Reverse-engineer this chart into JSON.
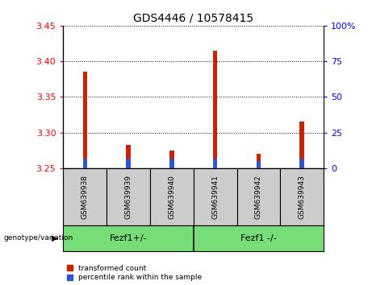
{
  "title": "GDS4446 / 10578415",
  "categories": [
    "GSM639938",
    "GSM639939",
    "GSM639940",
    "GSM639941",
    "GSM639942",
    "GSM639943"
  ],
  "red_values": [
    3.385,
    3.283,
    3.275,
    3.415,
    3.27,
    3.315
  ],
  "blue_values": [
    3.263,
    3.263,
    3.263,
    3.263,
    3.26,
    3.263
  ],
  "bar_base": 3.25,
  "ylim_left": [
    3.25,
    3.45
  ],
  "ylim_right": [
    0,
    100
  ],
  "yticks_left": [
    3.25,
    3.3,
    3.35,
    3.4,
    3.45
  ],
  "yticks_right": [
    0,
    25,
    50,
    75,
    100
  ],
  "ytick_labels_right": [
    "0",
    "25",
    "50",
    "75",
    "100%"
  ],
  "red_color": "#cc2200",
  "blue_color": "#3355cc",
  "group1_label": "Fezf1+/-",
  "group2_label": "Fezf1 -/-",
  "group_bg_color": "#77dd77",
  "label_area_bg": "#cccccc",
  "legend_red": "transformed count",
  "legend_blue": "percentile rank within the sample",
  "genotype_label": "genotype/variation",
  "bar_width": 0.1,
  "grid_color": "black"
}
